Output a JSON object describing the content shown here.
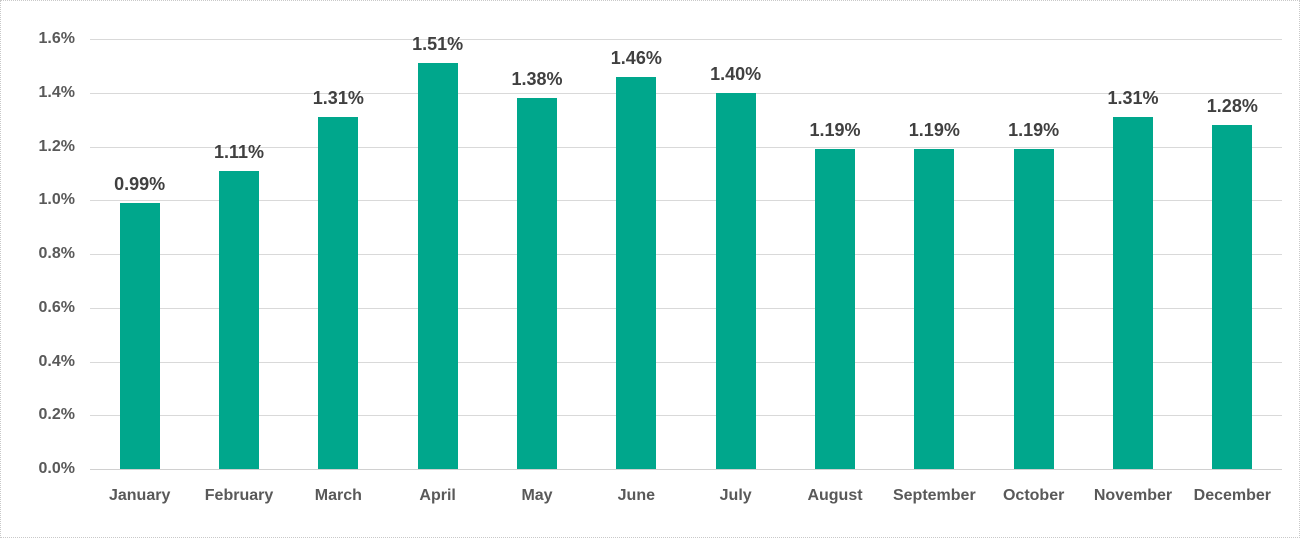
{
  "chart_data": {
    "type": "bar",
    "title": "",
    "xlabel": "",
    "ylabel": "",
    "categories": [
      "January",
      "February",
      "March",
      "April",
      "May",
      "June",
      "July",
      "August",
      "September",
      "October",
      "November",
      "December"
    ],
    "values": [
      0.99,
      1.11,
      1.31,
      1.51,
      1.38,
      1.46,
      1.4,
      1.19,
      1.19,
      1.19,
      1.31,
      1.28
    ],
    "data_labels": [
      "0.99%",
      "1.11%",
      "1.31%",
      "1.51%",
      "1.38%",
      "1.46%",
      "1.40%",
      "1.19%",
      "1.19%",
      "1.19%",
      "1.31%",
      "1.28%"
    ],
    "ylim": [
      0,
      1.6
    ],
    "ytick_step": 0.2,
    "ytick_labels": [
      "0.0%",
      "0.2%",
      "0.4%",
      "0.6%",
      "0.8%",
      "1.0%",
      "1.2%",
      "1.4%",
      "1.6%"
    ],
    "grid": true,
    "legend": false,
    "bar_color": "#00a78c",
    "data_label_color": "#404040",
    "axis_text_color": "#595959",
    "gridline_color": "#d9d9d9"
  }
}
